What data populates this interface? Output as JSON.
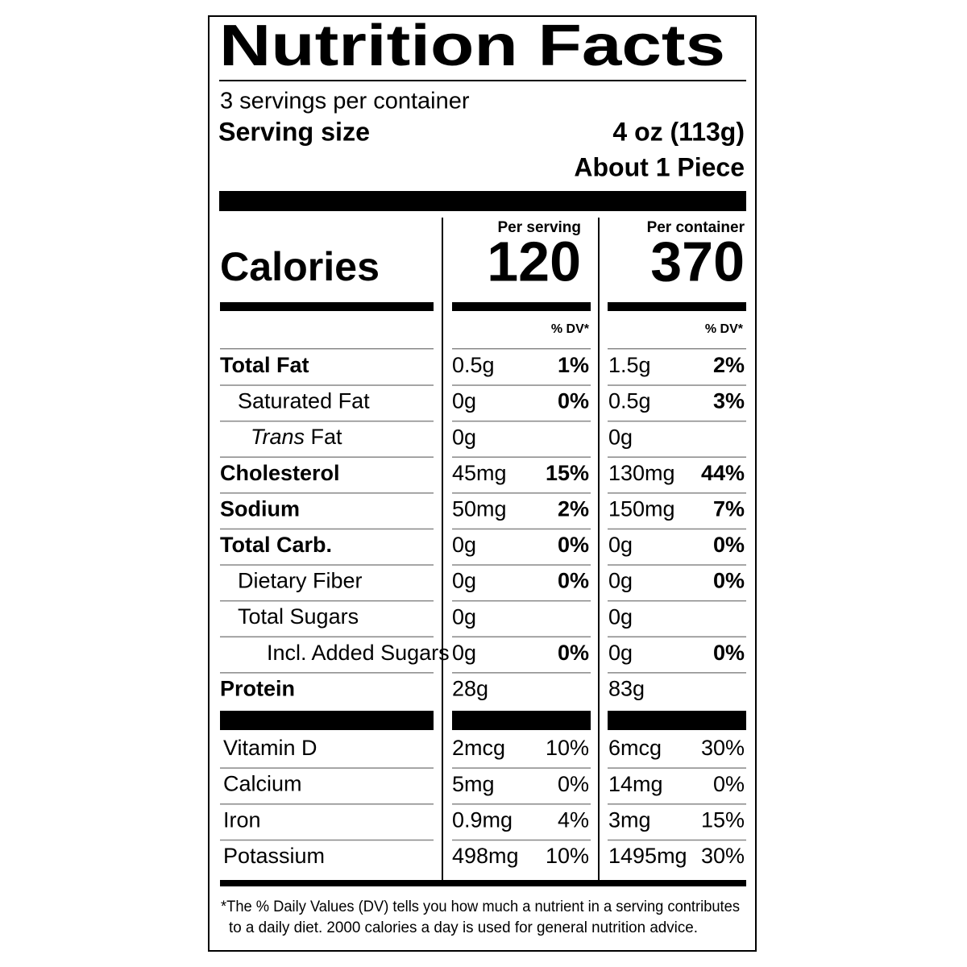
{
  "title": "Nutrition Facts",
  "servings": "3 servings per container",
  "serving_size": {
    "label": "Serving size",
    "amount": "4 oz (113g)",
    "note": "About 1 Piece"
  },
  "calories": {
    "label": "Calories",
    "per_serving_label": "Per serving",
    "per_serving": "120",
    "per_container_label": "Per container",
    "per_container": "370"
  },
  "dv_header": "% DV*",
  "nutrients": [
    {
      "name": "Total Fat",
      "serving": "0.5g",
      "serving_dv": "1%",
      "container": "1.5g",
      "container_dv": "2%"
    },
    {
      "name": "Saturated Fat",
      "serving": "0g",
      "serving_dv": "0%",
      "container": "0.5g",
      "container_dv": "3%"
    },
    {
      "name_italic": "Trans",
      "name": "Fat",
      "serving": "0g",
      "container": "0g"
    },
    {
      "name": "Cholesterol",
      "serving": "45mg",
      "serving_dv": "15%",
      "container": "130mg",
      "container_dv": "44%"
    },
    {
      "name": "Sodium",
      "serving": "50mg",
      "serving_dv": "2%",
      "container": "150mg",
      "container_dv": "7%"
    },
    {
      "name": "Total Carb.",
      "serving": "0g",
      "serving_dv": "0%",
      "container": "0g",
      "container_dv": "0%"
    },
    {
      "name": "Dietary Fiber",
      "serving": "0g",
      "serving_dv": "0%",
      "container": "0g",
      "container_dv": "0%"
    },
    {
      "name": "Total Sugars",
      "serving": "0g",
      "container": "0g"
    },
    {
      "name": "Incl. Added Sugars",
      "serving": "0g",
      "serving_dv": "0%",
      "container": "0g",
      "container_dv": "0%"
    },
    {
      "name": "Protein",
      "serving": "28g",
      "container": "83g"
    }
  ],
  "vitamins": [
    {
      "name": "Vitamin D",
      "serving": "2mcg",
      "serving_dv": "10%",
      "container": "6mcg",
      "container_dv": "30%"
    },
    {
      "name": "Calcium",
      "serving": "5mg",
      "serving_dv": "0%",
      "container": "14mg",
      "container_dv": "0%"
    },
    {
      "name": "Iron",
      "serving": "0.9mg",
      "serving_dv": "4%",
      "container": "3mg",
      "container_dv": "15%"
    },
    {
      "name": "Potassium",
      "serving": "498mg",
      "serving_dv": "10%",
      "container": "1495mg",
      "container_dv": "30%"
    }
  ],
  "footnote": [
    "*The % Daily Values (DV) tells you how much a nutrient in a serving contributes",
    "to a daily diet. 2000 calories a day is used for general nutrition advice."
  ]
}
